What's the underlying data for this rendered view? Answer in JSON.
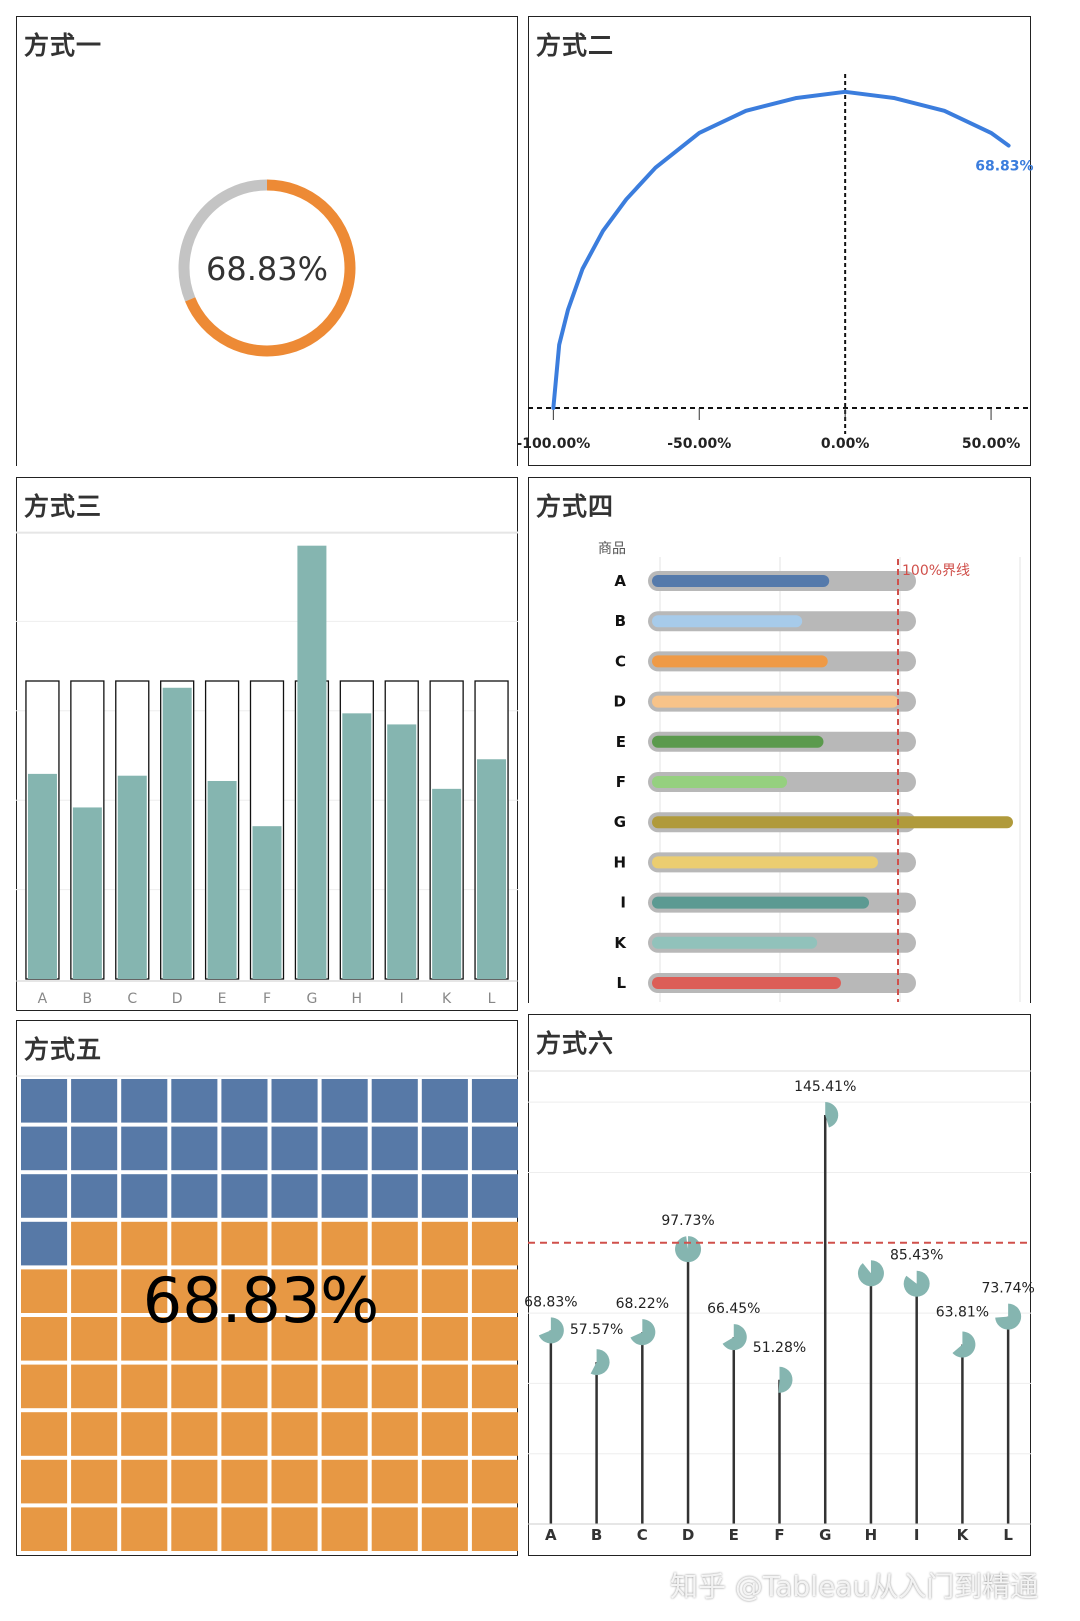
{
  "panels": {
    "p1": {
      "title": "方式一"
    },
    "p2": {
      "title": "方式二"
    },
    "p3": {
      "title": "方式三"
    },
    "p4": {
      "title": "方式四"
    },
    "p5": {
      "title": "方式五"
    },
    "p6": {
      "title": "方式六"
    }
  },
  "watermark": "知乎 @Tableau从入门到精通",
  "chart_data": [
    {
      "type": "pie",
      "title": "方式一",
      "subtype": "donut",
      "value": 0.6883,
      "label": "68.83%",
      "colors": {
        "filled": "#ed8a35",
        "remaining": "#c4c4c4"
      }
    },
    {
      "type": "line",
      "title": "方式二",
      "subtype": "radial gauge arc",
      "value_label": "68.83%",
      "x": [
        -1.0,
        -0.98,
        -0.95,
        -0.9,
        -0.83,
        -0.75,
        -0.65,
        -0.5,
        -0.34,
        -0.17,
        0.0,
        0.17,
        0.34,
        0.5,
        0.56
      ],
      "y": [
        0.0,
        0.2,
        0.31,
        0.44,
        0.56,
        0.66,
        0.76,
        0.87,
        0.94,
        0.98,
        1.0,
        0.98,
        0.94,
        0.87,
        0.83
      ],
      "xticks": [
        "-100.00%",
        "-50.00%",
        "0.00%",
        "50.00%"
      ],
      "xtick_values": [
        -1.0,
        -0.5,
        0.0,
        0.5
      ],
      "xlim": [
        -1.08,
        0.63
      ],
      "ylim": [
        0,
        1.05
      ],
      "reference_lines": {
        "vertical_x": 0.0,
        "horizontal_y": 0.0
      },
      "color": "#3b7ddd"
    },
    {
      "type": "bar",
      "title": "方式三",
      "categories": [
        "A",
        "B",
        "C",
        "D",
        "E",
        "F",
        "G",
        "H",
        "I",
        "K",
        "L"
      ],
      "values": [
        0.6883,
        0.5757,
        0.6822,
        0.9773,
        0.6645,
        0.5128,
        1.4541,
        0.8915,
        0.8543,
        0.6381,
        0.7374
      ],
      "outline_value": 1.0,
      "ylim": [
        0,
        1.5
      ],
      "color": "#85b5b0"
    },
    {
      "type": "bar",
      "title": "方式四",
      "orientation": "horizontal",
      "axis_title": "商品",
      "categories": [
        "A",
        "B",
        "C",
        "D",
        "E",
        "F",
        "G",
        "H",
        "I",
        "K",
        "L"
      ],
      "values": [
        0.6883,
        0.5757,
        0.6822,
        0.9773,
        0.6645,
        0.5128,
        1.4541,
        0.8915,
        0.8543,
        0.6381,
        0.7374
      ],
      "colors": [
        "#557aab",
        "#a7cbea",
        "#ef9a46",
        "#f7c389",
        "#5b9a4d",
        "#95d07f",
        "#b09a3b",
        "#ebcd70",
        "#5c9a92",
        "#91c2bb",
        "#dc5e57"
      ],
      "track_value": 1.0,
      "reference_line": {
        "value": 1.0,
        "label": "100%界线",
        "color": "#d0504b"
      },
      "xlim": [
        0,
        1.5
      ]
    },
    {
      "type": "heatmap",
      "title": "方式五",
      "subtype": "waffle 10x10",
      "value": 0.6883,
      "label": "68.83%",
      "filled_cells": 69,
      "colors": {
        "filled": "#e79844",
        "empty": "#5779a7"
      }
    },
    {
      "type": "scatter",
      "title": "方式六",
      "subtype": "lollipop with pie heads",
      "categories": [
        "A",
        "B",
        "C",
        "D",
        "E",
        "F",
        "G",
        "H",
        "I",
        "K",
        "L"
      ],
      "values": [
        0.6883,
        0.5757,
        0.6822,
        0.9773,
        0.6645,
        0.5128,
        1.4541,
        0.8915,
        0.8543,
        0.6381,
        0.7374
      ],
      "labels": [
        "68.83%",
        "57.57%",
        "68.22%",
        "97.73%",
        "66.45%",
        "51.28%",
        "145.41%",
        "",
        "85.43%",
        "63.81%",
        "73.74%"
      ],
      "ylim": [
        0,
        1.6
      ],
      "reference_line": {
        "value": 1.0,
        "color": "#d0504b"
      },
      "color": "#85b5b0"
    }
  ]
}
